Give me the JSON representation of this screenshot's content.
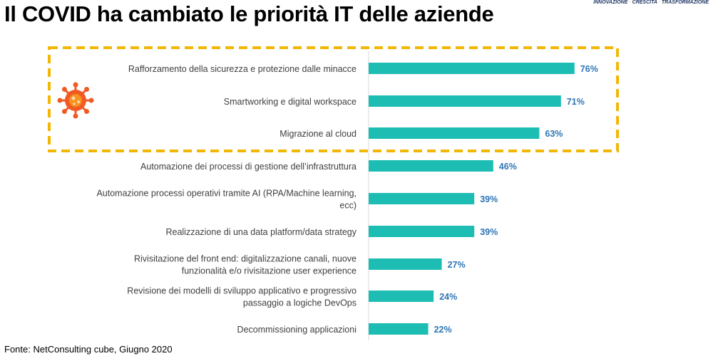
{
  "title": "Il COVID ha cambiato le priorità IT delle aziende",
  "tagline": [
    "INNOVAZIONE",
    "CRESCITA",
    "TRASFORMAZIONE"
  ],
  "source": "Fonte: NetConsulting cube, Giugno  2020",
  "colors": {
    "bar": "#1ebdb3",
    "value_label": "#2e75b6",
    "highlight_border": "#f2b705",
    "virus_icon": "#f15a24",
    "axis": "#d9d9d9"
  },
  "chart_data": {
    "type": "bar",
    "orientation": "horizontal",
    "categories": [
      [
        "Rafforzamento della sicurezza e protezione dalle minacce"
      ],
      [
        "Smartworking e digital workspace"
      ],
      [
        "Migrazione al cloud"
      ],
      [
        "Automazione dei processi di gestione dell’infrastruttura"
      ],
      [
        "Automazione processi operativi tramite AI (RPA/Machine learning,",
        "ecc)"
      ],
      [
        "Realizzazione di una data platform/data strategy"
      ],
      [
        "Rivisitazione del front end: digitalizzazione canali, nuove",
        "funzionalità e/o rivisitazione user experience"
      ],
      [
        "Revisione dei modelli di sviluppo applicativo e progressivo",
        "passaggio a logiche DevOps"
      ],
      [
        "Decommissioning applicazioni"
      ]
    ],
    "values": [
      76,
      71,
      63,
      46,
      39,
      39,
      27,
      24,
      22
    ],
    "value_labels": [
      "76%",
      "71%",
      "63%",
      "46%",
      "39%",
      "39%",
      "27%",
      "24%",
      "22%"
    ],
    "unit": "%",
    "xlim": [
      0,
      100
    ],
    "highlighted_categories": [
      0,
      1,
      2
    ],
    "highlight_icon": "virus-icon",
    "grid": false
  }
}
